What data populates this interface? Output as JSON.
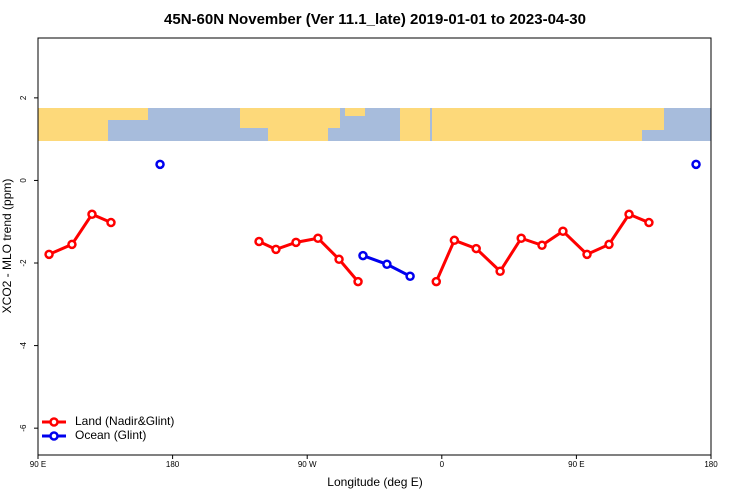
{
  "chart_data": {
    "type": "line",
    "title": "45N-60N November (Ver 11.1_late)   2019-01-01 to 2023-04-30",
    "x_label": "Longitude (deg E)",
    "y_label": "XCO2 - MLO trend (ppm)",
    "xlim": [
      90,
      540
    ],
    "ylim": [
      -6.65,
      3.45
    ],
    "xticks": [
      {
        "value": 90,
        "label": "90 E"
      },
      180,
      {
        "value": 270,
        "label": "90 W"
      },
      {
        "value": 360,
        "label": "0"
      },
      {
        "value": 450,
        "label": "90 E"
      },
      {
        "value": 540,
        "label": "180"
      }
    ],
    "yticks": [
      -6,
      -4,
      -2,
      0,
      2
    ],
    "legend": "bottom-left",
    "series": [
      {
        "name": "Land (Nadir&Glint)",
        "color": "#ff0000",
        "x": [
          97.4,
          112.7,
          126.1,
          138.8,
          null,
          237.8,
          249.1,
          262.5,
          277.2,
          291.3,
          304,
          null,
          356.3,
          368.4,
          383,
          399,
          413.1,
          427,
          441,
          457.1,
          471.8,
          485.2,
          498.5
        ],
        "values": [
          -1.79,
          -1.55,
          -0.82,
          -1.02,
          null,
          -1.48,
          -1.67,
          -1.5,
          -1.4,
          -1.91,
          -2.45,
          null,
          -2.45,
          -1.45,
          -1.65,
          -2.2,
          -1.4,
          -1.57,
          -1.23,
          -1.79,
          -1.55,
          -0.82,
          -1.02
        ]
      },
      {
        "name": "Ocean (Glint)",
        "color": "#0000ee",
        "x": [
          171.6,
          null,
          307.3,
          323.3,
          338.8,
          null,
          530
        ],
        "values": [
          0.39,
          null,
          -1.82,
          -2.03,
          -2.32,
          null,
          0.39
        ]
      }
    ]
  }
}
